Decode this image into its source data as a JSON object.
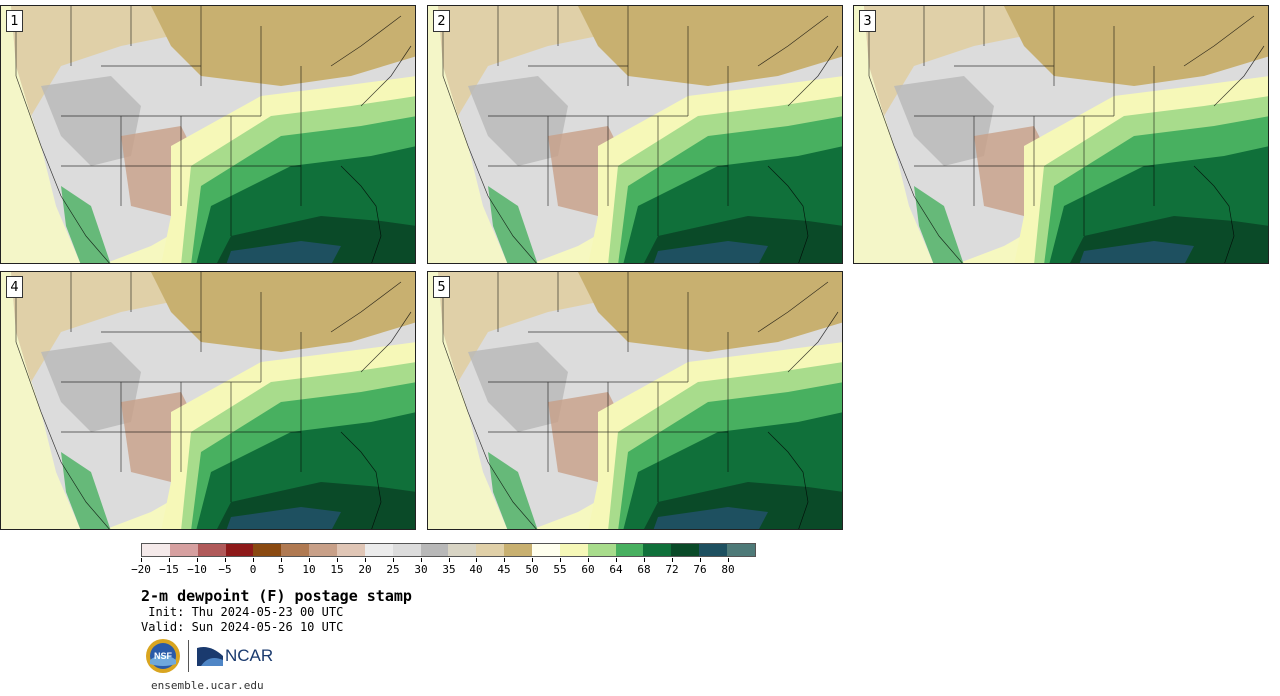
{
  "panels": [
    {
      "label": "1"
    },
    {
      "label": "2"
    },
    {
      "label": "3"
    },
    {
      "label": "4"
    },
    {
      "label": "5"
    }
  ],
  "colorbar": {
    "colors": [
      "#f5eaea",
      "#d6a0a0",
      "#b05a5a",
      "#8e1a1a",
      "#8a4a12",
      "#b07a52",
      "#c8a088",
      "#e0c6b6",
      "#ececec",
      "#dcdcdc",
      "#b8b8b8",
      "#d8d4c4",
      "#e0d0a8",
      "#c8b070",
      "#ffffee",
      "#f6f8b8",
      "#a8dc8c",
      "#48b060",
      "#10703a",
      "#0a4a28",
      "#1e5060",
      "#4e7a78"
    ],
    "tick_labels": [
      "-20",
      "-15",
      "-10",
      "-5",
      "0",
      "5",
      "10",
      "15",
      "20",
      "25",
      "30",
      "35",
      "40",
      "45",
      "50",
      "55",
      "60",
      "64",
      "68",
      "72",
      "76",
      "80"
    ]
  },
  "legend": {
    "title": "2-m dewpoint (F) postage stamp",
    "init": " Init: Thu 2024-05-23 00 UTC",
    "valid": "Valid: Sun 2024-05-26 10 UTC",
    "url": "ensemble.ucar.edu",
    "nsf_logo_text": "NSF",
    "ncar_logo_text": "NCAR"
  },
  "map_colors": {
    "ocean_west": "#f6f8c0",
    "dry_tan": "#c8b070",
    "light_tan": "#e0d0a8",
    "gray": "#b8b8b8",
    "light_gray": "#dcdcdc",
    "brown": "#c8a088",
    "yellow": "#f6f8b8",
    "light_green": "#a8dc8c",
    "green": "#48b060",
    "dark_green": "#10703a",
    "darker_green": "#0a4a28",
    "gulf": "#1e5060"
  }
}
